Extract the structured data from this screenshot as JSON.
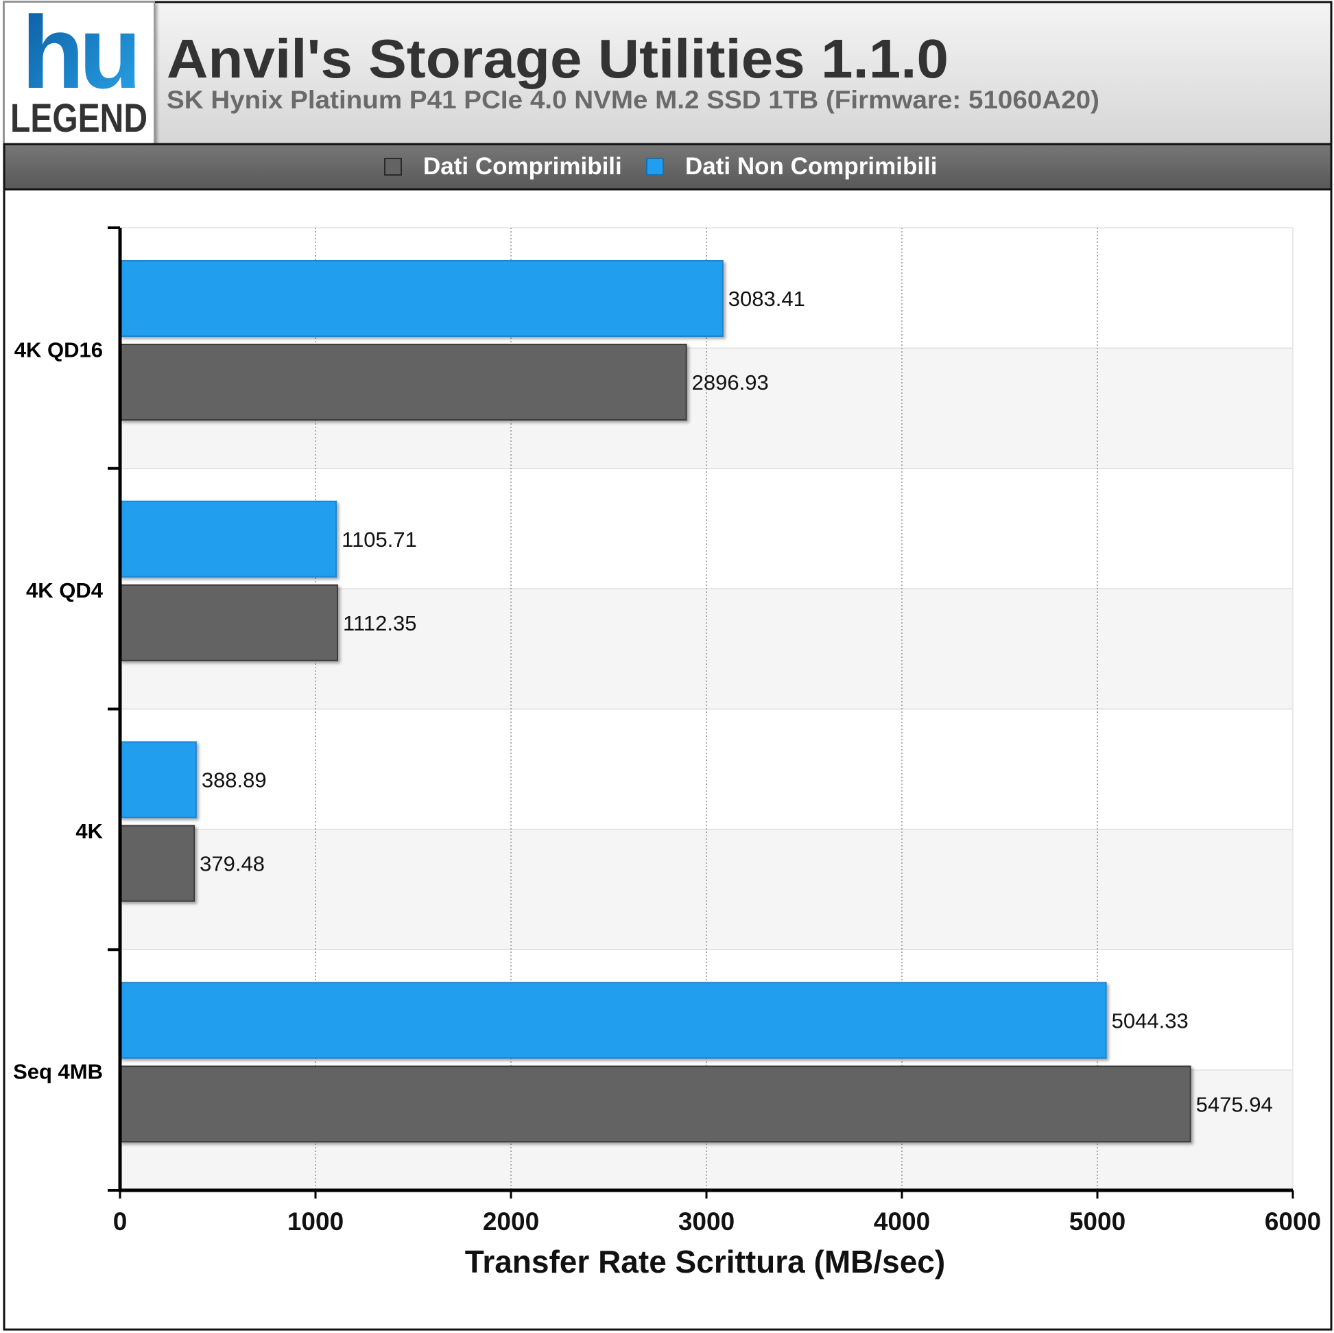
{
  "logo": {
    "top_text": "hu",
    "bottom_text": "LEGEND"
  },
  "title": "Anvil's Storage Utilities 1.1.0",
  "subtitle": "SK Hynix Platinum P41 PCIe 4.0 NVMe M.2 SSD 1TB (Firmware: 51060A20)",
  "colors": {
    "compressible": "#636363",
    "incompressible": "#229eee",
    "legend_bar": "#666666",
    "header_bg": "#e4e4e4",
    "band": "#f5f5f5"
  },
  "chart_data": {
    "type": "bar",
    "orientation": "horizontal",
    "categories": [
      "4K QD16",
      "4K QD4",
      "4K",
      "Seq 4MB"
    ],
    "series": [
      {
        "name": "Dati Non Comprimibili",
        "values": [
          3083.41,
          1105.71,
          388.89,
          5044.33
        ],
        "labels": [
          "3083.41",
          "1105.71",
          "388.89",
          "5044.33"
        ]
      },
      {
        "name": "Dati Comprimibili",
        "values": [
          2896.93,
          1112.35,
          379.48,
          5475.94
        ],
        "labels": [
          "2896.93",
          "1112.35",
          "379.48",
          "5475.94"
        ]
      }
    ],
    "legend": [
      "Dati Comprimibili",
      "Dati Non Comprimibili"
    ],
    "legend_position": "top",
    "xlabel": "Transfer Rate Scrittura (MB/sec)",
    "ylabel": "",
    "xlim": [
      0,
      6000
    ],
    "xticks": [
      "0",
      "1000",
      "2000",
      "3000",
      "4000",
      "5000",
      "6000"
    ],
    "grid": true
  }
}
